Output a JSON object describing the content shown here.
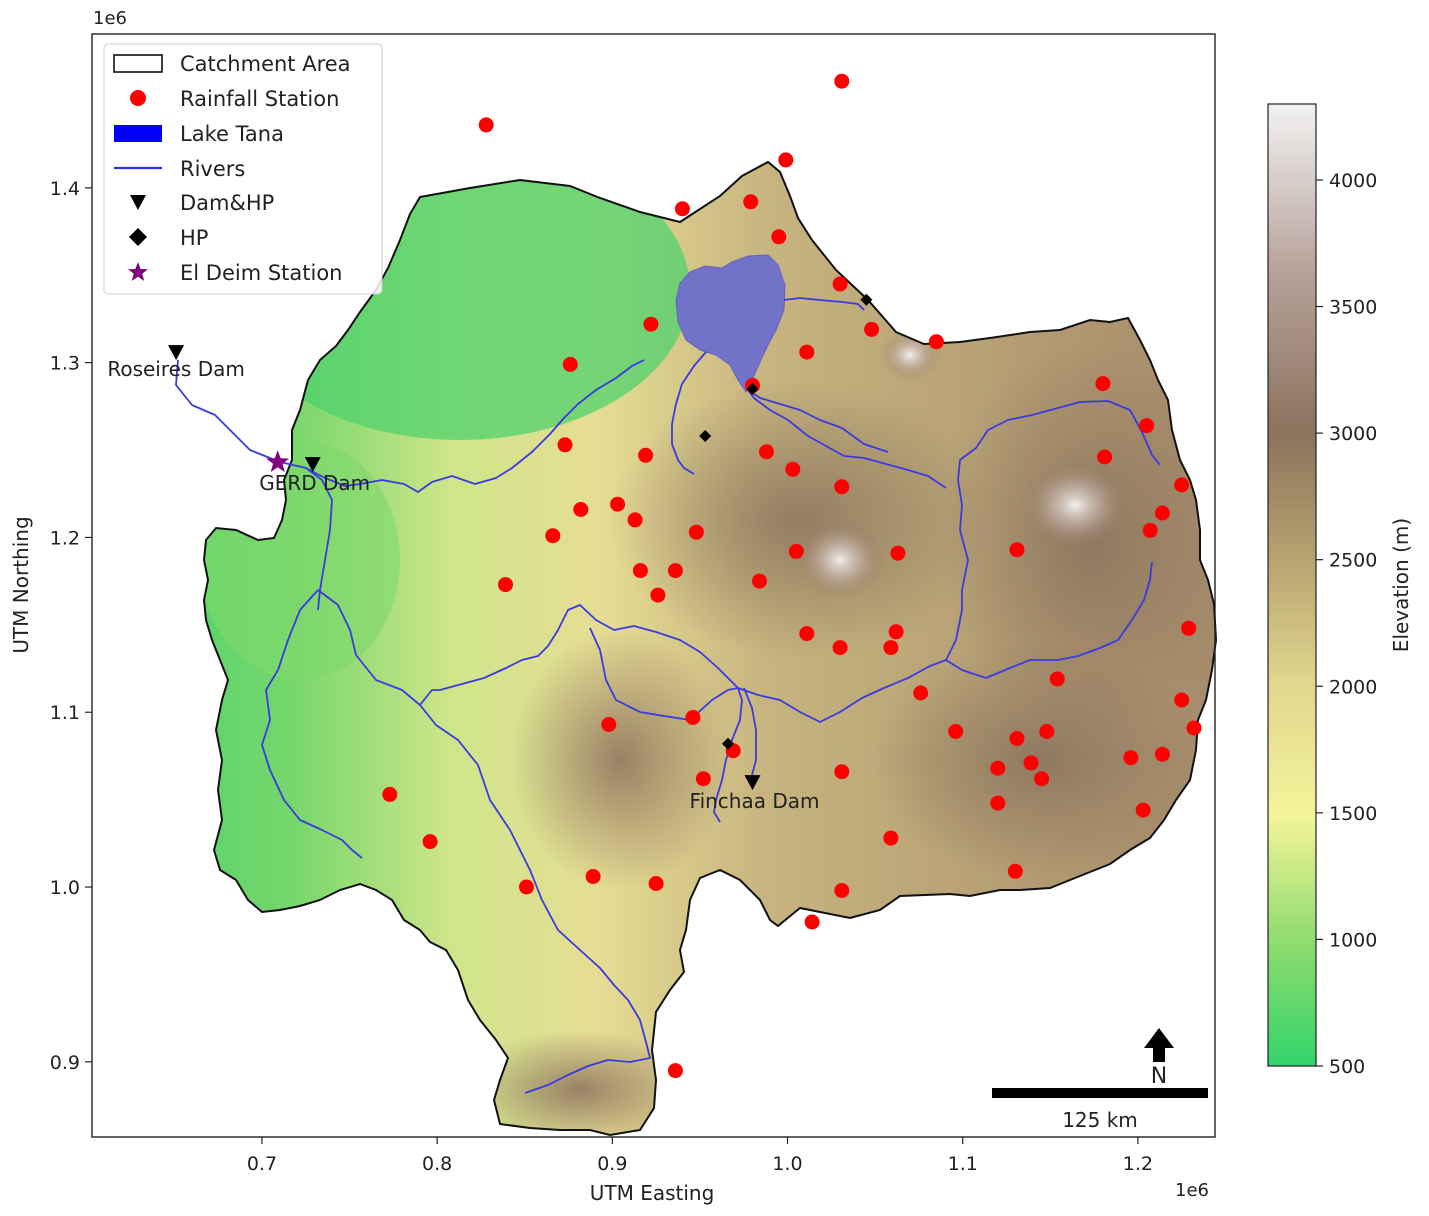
{
  "map": {
    "x_axis": {
      "label": "UTM Easting",
      "offset_text": "1e6",
      "ticks": [
        0.7,
        0.8,
        0.9,
        1.0,
        1.1,
        1.2
      ],
      "tick_labels": [
        "0.7",
        "0.8",
        "0.9",
        "1.0",
        "1.1",
        "1.2"
      ],
      "range": [
        0.603,
        1.244
      ]
    },
    "y_axis": {
      "label": "UTM Northing",
      "offset_text": "1e6",
      "ticks": [
        0.9,
        1.0,
        1.1,
        1.2,
        1.3,
        1.4
      ],
      "tick_labels": [
        "0.9",
        "1.0",
        "1.1",
        "1.2",
        "1.3",
        "1.4"
      ],
      "range": [
        0.857,
        1.488
      ]
    },
    "legend": {
      "placement": "upper-left",
      "entries": [
        {
          "key": "catchment",
          "label": "Catchment Area",
          "marker": "outlined-rectangle"
        },
        {
          "key": "rainfall",
          "label": "Rainfall Station",
          "marker": "red-circle",
          "color": "#ff0000"
        },
        {
          "key": "lake",
          "label": "Lake Tana",
          "marker": "filled-rectangle",
          "color": "#0000ff"
        },
        {
          "key": "rivers",
          "label": "Rivers",
          "marker": "line",
          "color": "#3333dd"
        },
        {
          "key": "damhp",
          "label": "Dam&HP",
          "marker": "down-triangle",
          "color": "#000000"
        },
        {
          "key": "hp",
          "label": "HP",
          "marker": "diamond",
          "color": "#000000"
        },
        {
          "key": "eldeim",
          "label": "El Deim Station",
          "marker": "star",
          "color": "#800080"
        }
      ]
    },
    "colorbar": {
      "label": "Elevation (m)",
      "min": 500,
      "max": 4300,
      "ticks": [
        500,
        1000,
        1500,
        2000,
        2500,
        3000,
        3500,
        4000
      ],
      "tick_labels": [
        "500",
        "1000",
        "1500",
        "2000",
        "2500",
        "3000",
        "3500",
        "4000"
      ],
      "colors": [
        "#33d46b",
        "#8fdc6e",
        "#f4f49a",
        "#e0d68e",
        "#b5a26f",
        "#8a725d",
        "#b8a49c",
        "#f2f2f2"
      ]
    },
    "dams_hp": [
      {
        "name": "Roseires Dam",
        "x": 0.651,
        "y": 1.306
      },
      {
        "name": "GERD Dam",
        "x": 0.729,
        "y": 1.242
      },
      {
        "name": "Finchaa Dam",
        "x": 0.98,
        "y": 1.06
      }
    ],
    "hp_stations": [
      {
        "x": 1.045,
        "y": 1.336
      },
      {
        "x": 0.98,
        "y": 1.285
      },
      {
        "x": 0.953,
        "y": 1.258
      },
      {
        "x": 0.966,
        "y": 1.082
      }
    ],
    "el_deim": {
      "x": 0.709,
      "y": 1.243
    },
    "rainfall_stations": [
      [
        1.031,
        1.461
      ],
      [
        0.828,
        1.436
      ],
      [
        0.999,
        1.416
      ],
      [
        0.979,
        1.392
      ],
      [
        0.94,
        1.388
      ],
      [
        0.995,
        1.372
      ],
      [
        1.03,
        1.345
      ],
      [
        0.922,
        1.322
      ],
      [
        1.048,
        1.319
      ],
      [
        1.085,
        1.312
      ],
      [
        1.011,
        1.306
      ],
      [
        0.876,
        1.299
      ],
      [
        1.18,
        1.288
      ],
      [
        0.98,
        1.287
      ],
      [
        1.205,
        1.264
      ],
      [
        0.873,
        1.253
      ],
      [
        0.988,
        1.249
      ],
      [
        0.919,
        1.247
      ],
      [
        1.181,
        1.246
      ],
      [
        1.003,
        1.239
      ],
      [
        1.031,
        1.229
      ],
      [
        1.225,
        1.23
      ],
      [
        0.903,
        1.219
      ],
      [
        0.882,
        1.216
      ],
      [
        1.214,
        1.214
      ],
      [
        0.913,
        1.21
      ],
      [
        1.207,
        1.204
      ],
      [
        0.948,
        1.203
      ],
      [
        0.866,
        1.201
      ],
      [
        1.131,
        1.193
      ],
      [
        1.005,
        1.192
      ],
      [
        1.063,
        1.191
      ],
      [
        0.984,
        1.175
      ],
      [
        0.916,
        1.181
      ],
      [
        0.936,
        1.181
      ],
      [
        0.839,
        1.173
      ],
      [
        0.926,
        1.167
      ],
      [
        1.229,
        1.148
      ],
      [
        1.011,
        1.145
      ],
      [
        1.062,
        1.146
      ],
      [
        1.03,
        1.137
      ],
      [
        1.059,
        1.137
      ],
      [
        1.154,
        1.119
      ],
      [
        1.076,
        1.111
      ],
      [
        1.225,
        1.107
      ],
      [
        0.946,
        1.097
      ],
      [
        0.898,
        1.093
      ],
      [
        1.232,
        1.091
      ],
      [
        1.096,
        1.089
      ],
      [
        1.148,
        1.089
      ],
      [
        1.131,
        1.085
      ],
      [
        0.969,
        1.078
      ],
      [
        1.196,
        1.074
      ],
      [
        1.214,
        1.076
      ],
      [
        1.139,
        1.071
      ],
      [
        1.12,
        1.068
      ],
      [
        1.031,
        1.066
      ],
      [
        1.145,
        1.062
      ],
      [
        0.952,
        1.062
      ],
      [
        0.773,
        1.053
      ],
      [
        1.12,
        1.048
      ],
      [
        1.203,
        1.044
      ],
      [
        1.059,
        1.028
      ],
      [
        0.796,
        1.026
      ],
      [
        1.13,
        1.009
      ],
      [
        0.889,
        1.006
      ],
      [
        0.925,
        1.002
      ],
      [
        0.851,
        1.0
      ],
      [
        1.031,
        0.998
      ],
      [
        1.014,
        0.98
      ],
      [
        0.936,
        0.895
      ]
    ],
    "scale_bar": {
      "label": "125 km",
      "length_m": 125000
    },
    "north_arrow": {
      "label": "N"
    }
  }
}
